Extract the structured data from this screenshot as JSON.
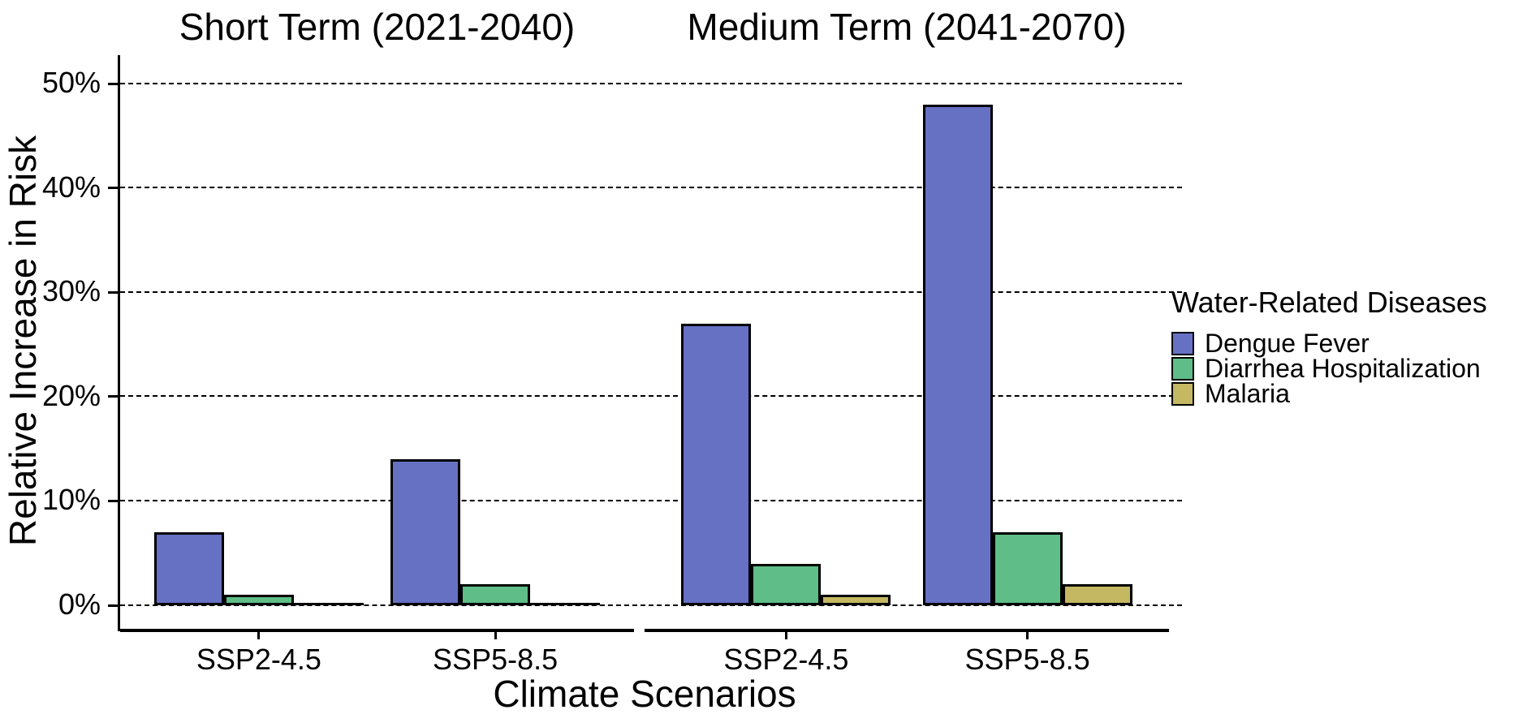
{
  "chart_data": {
    "type": "bar",
    "layout": "grouped bars, two facets side by side, horizontal dashed gridlines, legend right",
    "facets": [
      {
        "label": "Short Term (2021-2040)",
        "categories": [
          "SSP2-4.5",
          "SSP5-8.5"
        ],
        "series": [
          {
            "name": "Dengue Fever",
            "values": [
              7,
              14
            ]
          },
          {
            "name": "Diarrhea Hospitalization",
            "values": [
              1,
              2
            ]
          },
          {
            "name": "Malaria",
            "values": [
              0,
              0
            ]
          }
        ]
      },
      {
        "label": "Medium Term (2041-2070)",
        "categories": [
          "SSP2-4.5",
          "SSP5-8.5"
        ],
        "series": [
          {
            "name": "Dengue Fever",
            "values": [
              27,
              48
            ]
          },
          {
            "name": "Diarrhea Hospitalization",
            "values": [
              4,
              7
            ]
          },
          {
            "name": "Malaria",
            "values": [
              1,
              2
            ]
          }
        ]
      }
    ],
    "xlabel": "Climate Scenarios",
    "ylabel": "Relative Increase in Risk",
    "ylim": [
      0,
      50
    ],
    "yticks": [
      0,
      10,
      20,
      30,
      40,
      50
    ],
    "ytick_labels": [
      "0%",
      "10%",
      "20%",
      "30%",
      "40%",
      "50%"
    ],
    "grid": "horizontal dashed black",
    "legend": {
      "title": "Water-Related Diseases",
      "position": "right",
      "entries": [
        {
          "label": "Dengue Fever",
          "color": "#6671c4"
        },
        {
          "label": "Diarrhea Hospitalization",
          "color": "#5fbd87"
        },
        {
          "label": "Malaria",
          "color": "#c5b862"
        }
      ]
    },
    "colors": {
      "bar_border": "#000000",
      "axis": "#000000",
      "gridline": "#000000",
      "text": "#000000",
      "background": "#ffffff"
    }
  }
}
